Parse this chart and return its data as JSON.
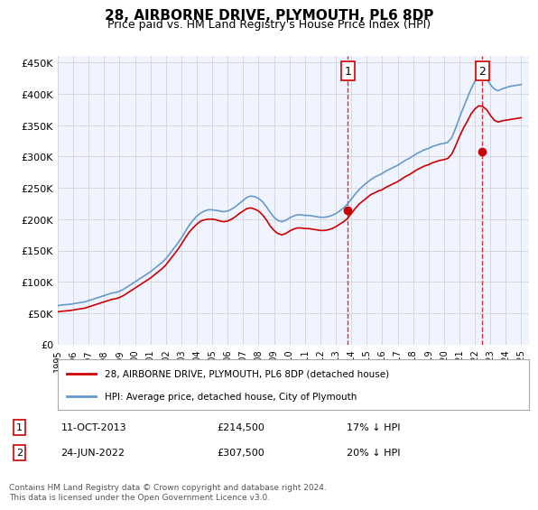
{
  "title": "28, AIRBORNE DRIVE, PLYMOUTH, PL6 8DP",
  "subtitle": "Price paid vs. HM Land Registry's House Price Index (HPI)",
  "xlabel": "",
  "ylabel": "",
  "ylim": [
    0,
    460000
  ],
  "yticks": [
    0,
    50000,
    100000,
    150000,
    200000,
    250000,
    300000,
    350000,
    400000,
    450000
  ],
  "ytick_labels": [
    "£0",
    "£50K",
    "£100K",
    "£150K",
    "£200K",
    "£250K",
    "£300K",
    "£350K",
    "£400K",
    "£450K"
  ],
  "xlim_start": 1995.0,
  "xlim_end": 2025.5,
  "xticks": [
    1995,
    1996,
    1997,
    1998,
    1999,
    2000,
    2001,
    2002,
    2003,
    2004,
    2005,
    2006,
    2007,
    2008,
    2009,
    2010,
    2011,
    2012,
    2013,
    2014,
    2015,
    2016,
    2017,
    2018,
    2019,
    2020,
    2021,
    2022,
    2023,
    2024,
    2025
  ],
  "background_color": "#f0f4ff",
  "plot_bg_color": "#f0f4ff",
  "grid_color": "#cccccc",
  "hpi_color": "#6699cc",
  "price_color": "#cc0000",
  "marker_color": "#cc0000",
  "sale1_x": 2013.78,
  "sale1_y": 214500,
  "sale1_label": "1",
  "sale1_date": "11-OCT-2013",
  "sale1_price": "£214,500",
  "sale1_note": "17% ↓ HPI",
  "sale2_x": 2022.48,
  "sale2_y": 307500,
  "sale2_label": "2",
  "sale2_date": "24-JUN-2022",
  "sale2_price": "£307,500",
  "sale2_note": "20% ↓ HPI",
  "legend_line1": "28, AIRBORNE DRIVE, PLYMOUTH, PL6 8DP (detached house)",
  "legend_line2": "HPI: Average price, detached house, City of Plymouth",
  "footer": "Contains HM Land Registry data © Crown copyright and database right 2024.\nThis data is licensed under the Open Government Licence v3.0.",
  "hpi_x": [
    1995.0,
    1995.25,
    1995.5,
    1995.75,
    1996.0,
    1996.25,
    1996.5,
    1996.75,
    1997.0,
    1997.25,
    1997.5,
    1997.75,
    1998.0,
    1998.25,
    1998.5,
    1998.75,
    1999.0,
    1999.25,
    1999.5,
    1999.75,
    2000.0,
    2000.25,
    2000.5,
    2000.75,
    2001.0,
    2001.25,
    2001.5,
    2001.75,
    2002.0,
    2002.25,
    2002.5,
    2002.75,
    2003.0,
    2003.25,
    2003.5,
    2003.75,
    2004.0,
    2004.25,
    2004.5,
    2004.75,
    2005.0,
    2005.25,
    2005.5,
    2005.75,
    2006.0,
    2006.25,
    2006.5,
    2006.75,
    2007.0,
    2007.25,
    2007.5,
    2007.75,
    2008.0,
    2008.25,
    2008.5,
    2008.75,
    2009.0,
    2009.25,
    2009.5,
    2009.75,
    2010.0,
    2010.25,
    2010.5,
    2010.75,
    2011.0,
    2011.25,
    2011.5,
    2011.75,
    2012.0,
    2012.25,
    2012.5,
    2012.75,
    2013.0,
    2013.25,
    2013.5,
    2013.75,
    2014.0,
    2014.25,
    2014.5,
    2014.75,
    2015.0,
    2015.25,
    2015.5,
    2015.75,
    2016.0,
    2016.25,
    2016.5,
    2016.75,
    2017.0,
    2017.25,
    2017.5,
    2017.75,
    2018.0,
    2018.25,
    2018.5,
    2018.75,
    2019.0,
    2019.25,
    2019.5,
    2019.75,
    2020.0,
    2020.25,
    2020.5,
    2020.75,
    2021.0,
    2021.25,
    2021.5,
    2021.75,
    2022.0,
    2022.25,
    2022.5,
    2022.75,
    2023.0,
    2023.25,
    2023.5,
    2023.75,
    2024.0,
    2024.25,
    2024.5,
    2024.75,
    2025.0
  ],
  "hpi_y": [
    62000,
    63000,
    63500,
    64000,
    65000,
    66000,
    67000,
    68000,
    70000,
    72000,
    74000,
    76000,
    78000,
    80000,
    82000,
    83000,
    85000,
    88000,
    92000,
    96000,
    100000,
    104000,
    108000,
    112000,
    116000,
    121000,
    126000,
    131000,
    137000,
    145000,
    153000,
    161000,
    170000,
    180000,
    190000,
    198000,
    205000,
    210000,
    213000,
    215000,
    215000,
    214000,
    213000,
    212000,
    213000,
    216000,
    220000,
    225000,
    230000,
    235000,
    237000,
    236000,
    233000,
    228000,
    220000,
    211000,
    203000,
    198000,
    196000,
    198000,
    202000,
    205000,
    207000,
    207000,
    206000,
    206000,
    205000,
    204000,
    203000,
    203000,
    204000,
    206000,
    209000,
    213000,
    218000,
    224000,
    232000,
    240000,
    247000,
    253000,
    258000,
    263000,
    267000,
    270000,
    273000,
    277000,
    280000,
    283000,
    286000,
    290000,
    294000,
    297000,
    301000,
    305000,
    308000,
    311000,
    313000,
    316000,
    318000,
    320000,
    321000,
    323000,
    330000,
    345000,
    362000,
    378000,
    393000,
    408000,
    420000,
    428000,
    430000,
    425000,
    415000,
    408000,
    405000,
    408000,
    410000,
    412000,
    413000,
    414000,
    415000
  ],
  "price_x": [
    1995.0,
    1995.25,
    1995.5,
    1995.75,
    1996.0,
    1996.25,
    1996.5,
    1996.75,
    1997.0,
    1997.25,
    1997.5,
    1997.75,
    1998.0,
    1998.25,
    1998.5,
    1998.75,
    1999.0,
    1999.25,
    1999.5,
    1999.75,
    2000.0,
    2000.25,
    2000.5,
    2000.75,
    2001.0,
    2001.25,
    2001.5,
    2001.75,
    2002.0,
    2002.25,
    2002.5,
    2002.75,
    2003.0,
    2003.25,
    2003.5,
    2003.75,
    2004.0,
    2004.25,
    2004.5,
    2004.75,
    2005.0,
    2005.25,
    2005.5,
    2005.75,
    2006.0,
    2006.25,
    2006.5,
    2006.75,
    2007.0,
    2007.25,
    2007.5,
    2007.75,
    2008.0,
    2008.25,
    2008.5,
    2008.75,
    2009.0,
    2009.25,
    2009.5,
    2009.75,
    2010.0,
    2010.25,
    2010.5,
    2010.75,
    2011.0,
    2011.25,
    2011.5,
    2011.75,
    2012.0,
    2012.25,
    2012.5,
    2012.75,
    2013.0,
    2013.25,
    2013.5,
    2013.75,
    2014.0,
    2014.25,
    2014.5,
    2014.75,
    2015.0,
    2015.25,
    2015.5,
    2015.75,
    2016.0,
    2016.25,
    2016.5,
    2016.75,
    2017.0,
    2017.25,
    2017.5,
    2017.75,
    2018.0,
    2018.25,
    2018.5,
    2018.75,
    2019.0,
    2019.25,
    2019.5,
    2019.75,
    2020.0,
    2020.25,
    2020.5,
    2020.75,
    2021.0,
    2021.25,
    2021.5,
    2021.75,
    2022.0,
    2022.25,
    2022.5,
    2022.75,
    2023.0,
    2023.25,
    2023.5,
    2023.75,
    2024.0,
    2024.25,
    2024.5,
    2024.75,
    2025.0
  ],
  "price_y": [
    52000,
    53000,
    53500,
    54000,
    55000,
    56000,
    57000,
    58000,
    60000,
    62000,
    64000,
    66000,
    68000,
    70000,
    72000,
    73000,
    75000,
    78000,
    82000,
    86000,
    90000,
    94000,
    98000,
    102000,
    106000,
    111000,
    116000,
    121000,
    127000,
    135000,
    143000,
    151000,
    160000,
    170000,
    179000,
    186000,
    192000,
    197000,
    199000,
    200000,
    200000,
    199000,
    197000,
    196000,
    197000,
    200000,
    204000,
    209000,
    213000,
    217000,
    218000,
    216000,
    213000,
    207000,
    199000,
    189000,
    182000,
    177000,
    175000,
    177000,
    181000,
    184000,
    186000,
    186000,
    185000,
    185000,
    184000,
    183000,
    182000,
    182000,
    183000,
    185000,
    188000,
    192000,
    196000,
    201000,
    209000,
    217000,
    224000,
    229000,
    234000,
    239000,
    242000,
    245000,
    247000,
    251000,
    254000,
    257000,
    260000,
    264000,
    268000,
    271000,
    275000,
    279000,
    282000,
    285000,
    287000,
    290000,
    292000,
    294000,
    295000,
    297000,
    304000,
    317000,
    332000,
    345000,
    356000,
    368000,
    376000,
    381000,
    380000,
    375000,
    366000,
    358000,
    355000,
    357000,
    358000,
    359000,
    360000,
    361000,
    362000
  ]
}
